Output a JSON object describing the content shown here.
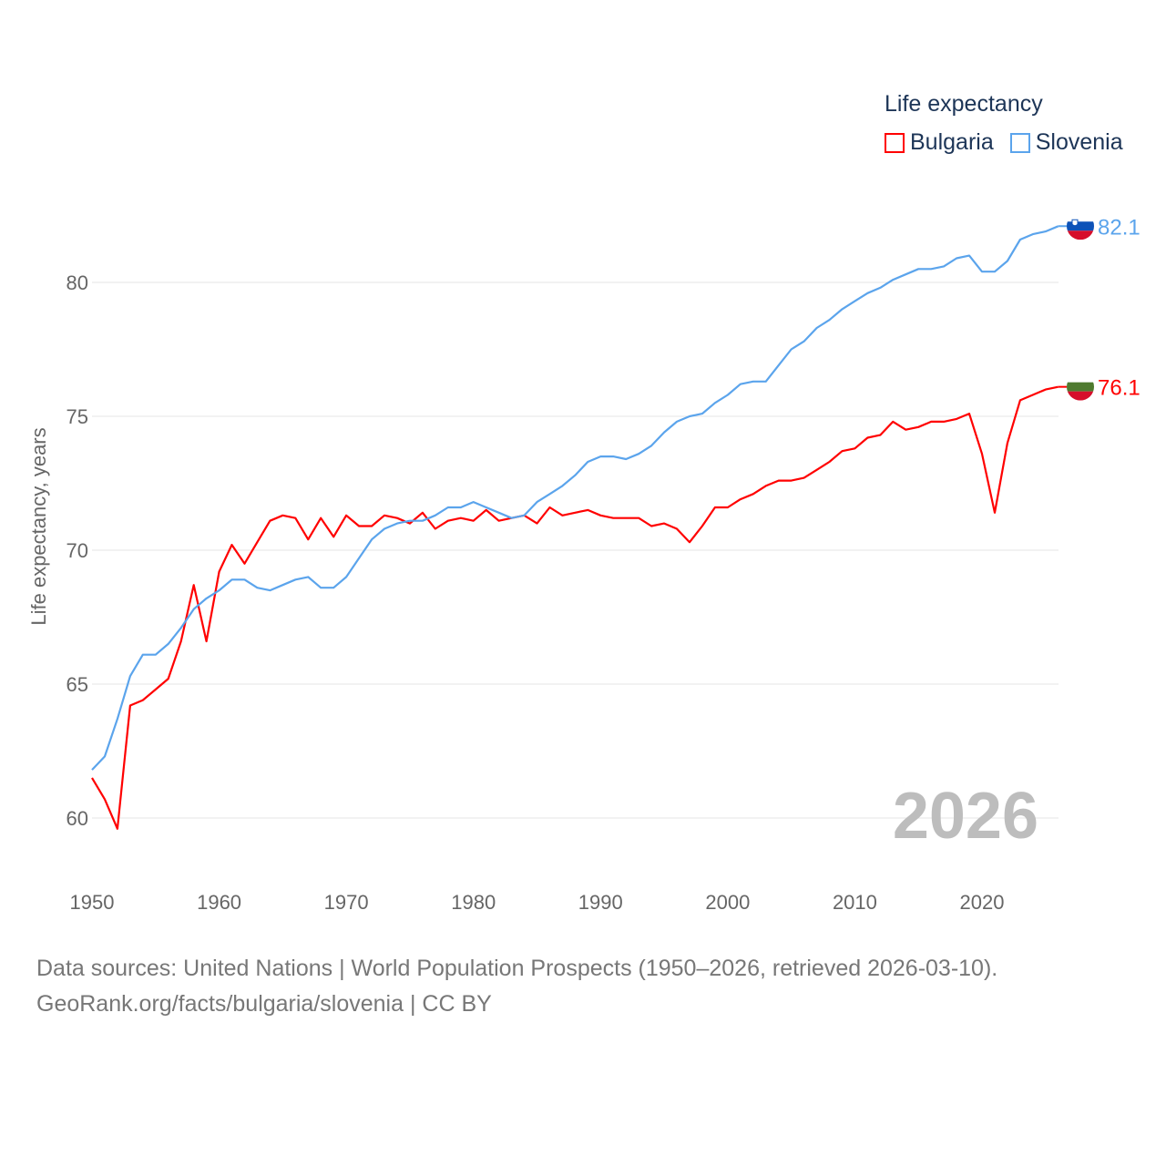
{
  "chart_data": {
    "type": "line",
    "title": "Life expectancy",
    "xlabel": "",
    "ylabel": "Life expectancy, years",
    "xlim": [
      1950,
      2026
    ],
    "ylim": [
      58.5,
      83
    ],
    "x_ticks": [
      "1950",
      "1960",
      "1970",
      "1980",
      "1990",
      "2000",
      "2010",
      "2020"
    ],
    "x_tick_values": [
      1950,
      1960,
      1970,
      1980,
      1990,
      2000,
      2010,
      2020
    ],
    "y_ticks": [
      "60",
      "65",
      "70",
      "75",
      "80"
    ],
    "y_tick_values": [
      60,
      65,
      70,
      75,
      80
    ],
    "grid": true,
    "legend_position": "top-right",
    "year_label": "2026",
    "x": [
      1950,
      1951,
      1952,
      1953,
      1954,
      1955,
      1956,
      1957,
      1958,
      1959,
      1960,
      1961,
      1962,
      1963,
      1964,
      1965,
      1966,
      1967,
      1968,
      1969,
      1970,
      1971,
      1972,
      1973,
      1974,
      1975,
      1976,
      1977,
      1978,
      1979,
      1980,
      1981,
      1982,
      1983,
      1984,
      1985,
      1986,
      1987,
      1988,
      1989,
      1990,
      1991,
      1992,
      1993,
      1994,
      1995,
      1996,
      1997,
      1998,
      1999,
      2000,
      2001,
      2002,
      2003,
      2004,
      2005,
      2006,
      2007,
      2008,
      2009,
      2010,
      2011,
      2012,
      2013,
      2014,
      2015,
      2016,
      2017,
      2018,
      2019,
      2020,
      2021,
      2022,
      2023,
      2024,
      2025,
      2026
    ],
    "series": [
      {
        "name": "Bulgaria",
        "color": "#ff0000",
        "end_label": "76.1",
        "values": [
          61.5,
          60.7,
          59.6,
          64.2,
          64.4,
          64.8,
          65.2,
          66.6,
          68.7,
          66.6,
          69.2,
          70.2,
          69.5,
          70.3,
          71.1,
          71.3,
          71.2,
          70.4,
          71.2,
          70.5,
          71.3,
          70.9,
          70.9,
          71.3,
          71.2,
          71.0,
          71.4,
          70.8,
          71.1,
          71.2,
          71.1,
          71.5,
          71.1,
          71.2,
          71.3,
          71.0,
          71.6,
          71.3,
          71.4,
          71.5,
          71.3,
          71.2,
          71.2,
          71.2,
          70.9,
          71.0,
          70.8,
          70.3,
          70.9,
          71.6,
          71.6,
          71.9,
          72.1,
          72.4,
          72.6,
          72.6,
          72.7,
          73.0,
          73.3,
          73.7,
          73.8,
          74.2,
          74.3,
          74.8,
          74.5,
          74.6,
          74.8,
          74.8,
          74.9,
          75.1,
          73.6,
          71.4,
          74.0,
          75.6,
          75.8,
          76.0,
          76.1
        ]
      },
      {
        "name": "Slovenia",
        "color": "#5ba4ec",
        "end_label": "82.1",
        "values": [
          61.8,
          62.3,
          63.7,
          65.3,
          66.1,
          66.1,
          66.5,
          67.1,
          67.8,
          68.2,
          68.5,
          68.9,
          68.9,
          68.6,
          68.5,
          68.7,
          68.9,
          69.0,
          68.6,
          68.6,
          69.0,
          69.7,
          70.4,
          70.8,
          71.0,
          71.1,
          71.1,
          71.3,
          71.6,
          71.6,
          71.8,
          71.6,
          71.4,
          71.2,
          71.3,
          71.8,
          72.1,
          72.4,
          72.8,
          73.3,
          73.5,
          73.5,
          73.4,
          73.6,
          73.9,
          74.4,
          74.8,
          75.0,
          75.1,
          75.5,
          75.8,
          76.2,
          76.3,
          76.3,
          76.9,
          77.5,
          77.8,
          78.3,
          78.6,
          79.0,
          79.3,
          79.6,
          79.8,
          80.1,
          80.3,
          80.5,
          80.5,
          80.6,
          80.9,
          81.0,
          80.4,
          80.4,
          80.8,
          81.6,
          81.8,
          81.9,
          82.1
        ]
      }
    ]
  },
  "footer": {
    "line1": "Data sources: United Nations | World Population Prospects (1950–2026, retrieved 2026-03-10).",
    "line2": "GeoRank.org/facts/bulgaria/slovenia | CC BY"
  }
}
